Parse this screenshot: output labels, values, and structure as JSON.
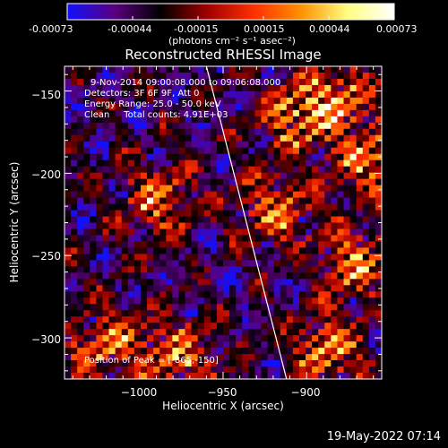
{
  "colorbar": {
    "ticks": [
      "-0.00073",
      "-0.00044",
      "-0.00015",
      "0.00015",
      "0.00044",
      "0.00073"
    ],
    "units": "(photons cm⁻² s⁻¹ asec⁻²)",
    "range": [
      -0.00073,
      0.00073
    ],
    "colors": [
      "#1010ff",
      "#5a0080",
      "#000000",
      "#a00000",
      "#ff3000",
      "#ff9000",
      "#ffff80",
      "#ffffff"
    ]
  },
  "chart_data": {
    "type": "heatmap",
    "title": "Reconstructed RHESSI Image",
    "xlabel": "Heliocentric X (arcsec)",
    "ylabel": "Heliocentric Y (arcsec)",
    "xlim": [
      -1045,
      -855
    ],
    "ylim": [
      -325,
      -135
    ],
    "xticks": [
      -1000,
      -950,
      -900
    ],
    "yticks": [
      -150,
      -200,
      -250,
      -300
    ],
    "xtick_labels": [
      "−1000",
      "−950",
      "−900"
    ],
    "ytick_labels": [
      "−150",
      "−200",
      "−250",
      "−300"
    ],
    "limb_line": [
      [
        -960,
        -135
      ],
      [
        -912,
        -325
      ]
    ],
    "peak": [
      -865,
      -150
    ],
    "annotations": {
      "time": "9-Nov-2014 09:00:08.000 to 09:06:08.000",
      "detectors": "Detectors: 3F 6F 9F, Att 0",
      "energy": "Energy Range: 25.0 - 50.0 keV",
      "clean": "Clean     Total counts: 4.91E+03",
      "peak_text": "Position of Peak = [-865,-150]"
    }
  },
  "footer": {
    "date": "19-May-2022 07:14"
  }
}
